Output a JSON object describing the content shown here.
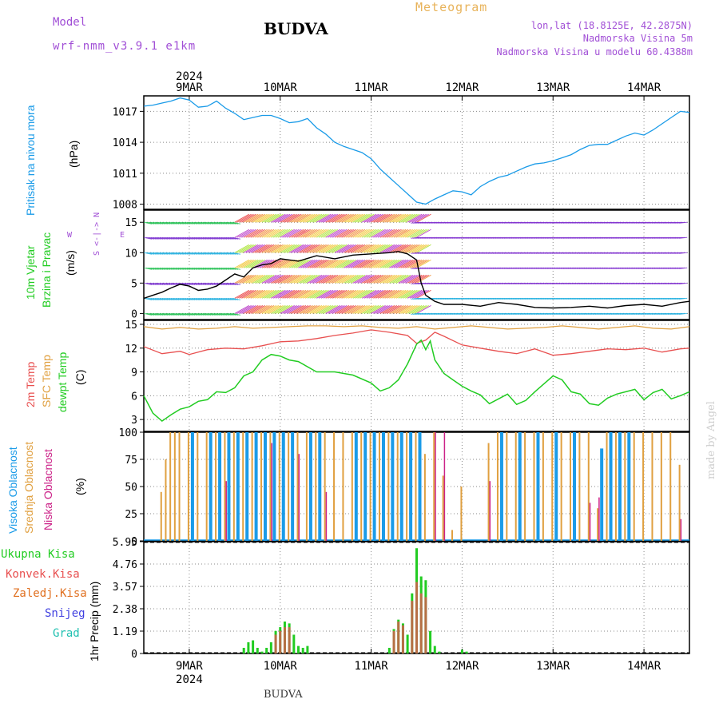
{
  "header": {
    "model_label": "Model",
    "model_version": "wrf-nmm_v3.9.1 e1km",
    "station": "BUDVA",
    "title": "Meteogram",
    "location": "lon,lat (18.8125E, 42.2875N)",
    "elevation": "Nadmorska Visina 5m",
    "model_elevation": "Nadmorska Visina u modelu 60.4388m"
  },
  "footer": {
    "station": "BUDVA",
    "credit": "made by Angel"
  },
  "time_axis": {
    "year": "2024",
    "days": [
      "9MAR",
      "10MAR",
      "11MAR",
      "12MAR",
      "13MAR",
      "14MAR"
    ]
  },
  "colors": {
    "pressure": "#1a9be8",
    "temp2m": "#e85050",
    "sfc": "#e0a040",
    "dewpt": "#22cc22",
    "high_cloud": "#1a9be8",
    "mid_cloud": "#e0a040",
    "low_cloud": "#cc2288",
    "total_precip": "#22cc22",
    "conv_precip": "#e85050",
    "frz_precip": "#e07020",
    "snow": "#4040e0",
    "graupel": "#20c0b0",
    "wind_speed": "#000000"
  },
  "panels": {
    "pressure": {
      "label": "Pritisak na nivou mora",
      "unit": "(hPa)"
    },
    "wind": {
      "label1": "10m Vjetar",
      "label2": "Brzina i Pravac",
      "unit": "(m/s)",
      "compass_ns": "S <-|-> N",
      "compass_w": "W",
      "compass_e": "E"
    },
    "temp": {
      "label1": "2m Temp",
      "label2": "SFC Temp",
      "label3": "dewpt Temp",
      "unit": "(C)"
    },
    "cloud": {
      "label1": "Visoka Oblacnost",
      "label2": "Srednja Oblacnost",
      "label3": "Niska Oblacnost",
      "unit": "(%)"
    },
    "precip": {
      "label1": "Ukupna Kisa",
      "label2": "Konvek.Kisa",
      "label3": "Zaledj.Kisa",
      "label4": "Snijeg",
      "label5": "Grad",
      "unit": "1hr Precip (mm)"
    }
  },
  "chart_data": [
    {
      "type": "line",
      "panel": "pressure",
      "ylabel": "(hPa)",
      "ylim": [
        1007.5,
        1018.5
      ],
      "yticks": [
        1008,
        1011,
        1014,
        1017
      ],
      "x_day_range": [
        8.5,
        14.5
      ],
      "series": [
        {
          "name": "Pritisak na nivou mora",
          "x": [
            8.5,
            8.6,
            8.7,
            8.8,
            8.9,
            9.0,
            9.1,
            9.2,
            9.3,
            9.4,
            9.5,
            9.6,
            9.7,
            9.8,
            9.9,
            10.0,
            10.1,
            10.2,
            10.3,
            10.4,
            10.5,
            10.6,
            10.7,
            10.8,
            10.9,
            11.0,
            11.1,
            11.2,
            11.3,
            11.4,
            11.5,
            11.6,
            11.7,
            11.8,
            11.9,
            12.0,
            12.1,
            12.2,
            12.3,
            12.4,
            12.5,
            12.6,
            12.7,
            12.8,
            12.9,
            13.0,
            13.1,
            13.2,
            13.3,
            13.4,
            13.5,
            13.6,
            13.7,
            13.8,
            13.9,
            14.0,
            14.1,
            14.2,
            14.3,
            14.4,
            14.5
          ],
          "y": [
            1017.5,
            1017.6,
            1017.8,
            1018.0,
            1018.3,
            1018.1,
            1017.4,
            1017.5,
            1018.0,
            1017.3,
            1016.8,
            1016.2,
            1016.4,
            1016.6,
            1016.6,
            1016.3,
            1015.9,
            1016.0,
            1016.3,
            1015.4,
            1014.8,
            1014.0,
            1013.6,
            1013.3,
            1013.0,
            1012.4,
            1011.4,
            1010.6,
            1009.8,
            1009.0,
            1008.2,
            1008.0,
            1008.5,
            1008.9,
            1009.3,
            1009.2,
            1008.9,
            1009.7,
            1010.2,
            1010.6,
            1010.8,
            1011.2,
            1011.6,
            1011.9,
            1012.0,
            1012.2,
            1012.5,
            1012.8,
            1013.3,
            1013.7,
            1013.8,
            1013.8,
            1014.2,
            1014.6,
            1014.9,
            1014.7,
            1015.2,
            1015.8,
            1016.4,
            1017.0,
            1016.9
          ]
        }
      ]
    },
    {
      "type": "line",
      "panel": "wind",
      "ylabel": "(m/s)",
      "ylim": [
        -1,
        17
      ],
      "yticks": [
        0,
        5,
        10,
        15
      ],
      "x_day_range": [
        8.5,
        14.5
      ],
      "series": [
        {
          "name": "10m wind speed",
          "x": [
            8.5,
            8.6,
            8.7,
            8.8,
            8.9,
            9.0,
            9.1,
            9.2,
            9.3,
            9.4,
            9.5,
            9.6,
            9.7,
            9.8,
            9.9,
            10.0,
            10.2,
            10.4,
            10.6,
            10.8,
            11.0,
            11.2,
            11.3,
            11.4,
            11.5,
            11.55,
            11.6,
            11.7,
            11.8,
            12.0,
            12.2,
            12.4,
            12.6,
            12.8,
            13.0,
            13.2,
            13.4,
            13.6,
            13.8,
            14.0,
            14.2,
            14.4,
            14.5
          ],
          "y": [
            2.5,
            3.0,
            3.5,
            4.2,
            4.8,
            4.5,
            3.8,
            4.0,
            4.5,
            5.5,
            6.5,
            6.0,
            7.5,
            8.0,
            8.2,
            9.0,
            8.6,
            9.5,
            9.0,
            9.6,
            9.8,
            10.0,
            10.2,
            9.8,
            8.8,
            5.0,
            3.0,
            2.0,
            1.5,
            1.5,
            1.2,
            1.8,
            1.5,
            1.0,
            0.9,
            1.0,
            1.2,
            0.9,
            1.3,
            1.5,
            1.2,
            1.8,
            2.0
          ]
        }
      ]
    },
    {
      "type": "line",
      "panel": "temperature",
      "ylabel": "(C)",
      "ylim": [
        1.5,
        15.5
      ],
      "yticks": [
        3,
        6,
        9,
        12,
        15
      ],
      "x_day_range": [
        8.5,
        14.5
      ],
      "series": [
        {
          "name": "2m Temp",
          "x": [
            8.5,
            8.7,
            8.9,
            9.0,
            9.2,
            9.4,
            9.6,
            9.8,
            10.0,
            10.2,
            10.4,
            10.6,
            10.8,
            11.0,
            11.2,
            11.4,
            11.5,
            11.6,
            11.7,
            11.8,
            12.0,
            12.2,
            12.4,
            12.6,
            12.8,
            13.0,
            13.2,
            13.4,
            13.6,
            13.8,
            14.0,
            14.2,
            14.4,
            14.5
          ],
          "y": [
            12.2,
            11.3,
            11.6,
            11.2,
            11.8,
            12.0,
            11.9,
            12.3,
            12.8,
            12.9,
            13.2,
            13.6,
            13.9,
            14.3,
            14.0,
            13.6,
            12.6,
            13.0,
            14.0,
            13.5,
            12.4,
            12.0,
            11.6,
            11.3,
            11.9,
            11.1,
            11.3,
            11.6,
            11.9,
            11.8,
            12.0,
            11.5,
            11.9,
            12.0
          ]
        },
        {
          "name": "SFC Temp",
          "x": [
            8.5,
            8.7,
            8.9,
            9.1,
            9.3,
            9.5,
            9.7,
            9.9,
            10.1,
            10.3,
            10.5,
            10.7,
            10.9,
            11.1,
            11.3,
            11.5,
            11.7,
            11.9,
            12.1,
            12.3,
            12.5,
            12.7,
            12.9,
            13.1,
            13.3,
            13.5,
            13.7,
            13.9,
            14.1,
            14.3,
            14.5
          ],
          "y": [
            14.7,
            14.4,
            14.6,
            14.4,
            14.5,
            14.7,
            14.5,
            14.6,
            14.7,
            14.8,
            14.8,
            14.7,
            14.8,
            14.6,
            14.5,
            14.7,
            14.4,
            14.6,
            14.8,
            14.6,
            14.4,
            14.5,
            14.6,
            14.8,
            14.6,
            14.4,
            14.6,
            14.8,
            14.5,
            14.4,
            14.7
          ]
        },
        {
          "name": "dewpt Temp",
          "x": [
            8.5,
            8.6,
            8.7,
            8.8,
            8.9,
            9.0,
            9.1,
            9.2,
            9.3,
            9.4,
            9.5,
            9.6,
            9.7,
            9.8,
            9.9,
            10.0,
            10.1,
            10.2,
            10.4,
            10.6,
            10.8,
            11.0,
            11.1,
            11.2,
            11.3,
            11.4,
            11.5,
            11.55,
            11.6,
            11.65,
            11.7,
            11.8,
            11.9,
            12.0,
            12.1,
            12.2,
            12.3,
            12.4,
            12.5,
            12.6,
            12.7,
            12.8,
            12.9,
            13.0,
            13.1,
            13.2,
            13.3,
            13.4,
            13.5,
            13.6,
            13.7,
            13.8,
            13.9,
            14.0,
            14.1,
            14.2,
            14.3,
            14.4,
            14.5
          ],
          "y": [
            6.0,
            3.8,
            2.8,
            3.6,
            4.3,
            4.6,
            5.3,
            5.5,
            6.5,
            6.4,
            7.0,
            8.5,
            9.0,
            10.5,
            11.2,
            11.0,
            10.5,
            10.3,
            9.0,
            9.0,
            8.6,
            7.6,
            6.6,
            7.0,
            8.0,
            10.0,
            12.5,
            13.0,
            11.8,
            12.9,
            10.5,
            8.8,
            8.0,
            7.2,
            6.6,
            6.1,
            5.0,
            5.6,
            6.2,
            4.9,
            5.4,
            6.5,
            7.5,
            8.5,
            8.0,
            6.5,
            6.2,
            5.0,
            4.8,
            5.7,
            6.2,
            6.5,
            6.8,
            5.5,
            6.4,
            6.8,
            5.6,
            6.0,
            6.5
          ]
        }
      ]
    },
    {
      "type": "bar",
      "panel": "cloud",
      "ylabel": "(%)",
      "ylim": [
        0,
        100
      ],
      "yticks": [
        0,
        25,
        50,
        75,
        100
      ],
      "x_day_range": [
        8.5,
        14.5
      ],
      "series": [
        {
          "name": "Visoka Oblacnost",
          "x": [
            9.0,
            9.2,
            9.3,
            9.4,
            9.5,
            9.6,
            9.7,
            9.8,
            9.9,
            10.0,
            10.1,
            10.3,
            10.4,
            10.8,
            10.9,
            11.0,
            11.1,
            11.2,
            11.3,
            11.4,
            11.5,
            12.4,
            12.6,
            12.8,
            13.0,
            13.2,
            13.5,
            13.6,
            13.7,
            13.8
          ],
          "y": [
            100,
            100,
            100,
            100,
            100,
            100,
            100,
            100,
            100,
            100,
            100,
            100,
            100,
            100,
            100,
            100,
            100,
            100,
            100,
            100,
            100,
            100,
            100,
            100,
            100,
            100,
            85,
            100,
            100,
            100
          ]
        },
        {
          "name": "Srednja Oblacnost",
          "x": [
            8.7,
            8.75,
            8.8,
            8.85,
            8.9,
            9.0,
            9.1,
            9.2,
            9.3,
            9.4,
            9.5,
            9.6,
            9.7,
            9.8,
            9.9,
            10.0,
            10.1,
            10.2,
            10.3,
            10.4,
            10.5,
            10.6,
            10.7,
            10.8,
            10.9,
            11.0,
            11.1,
            11.2,
            11.3,
            11.4,
            11.5,
            11.6,
            11.7,
            11.8,
            11.9,
            12.0,
            12.3,
            12.4,
            12.5,
            12.6,
            12.7,
            12.8,
            12.9,
            13.0,
            13.1,
            13.2,
            13.3,
            13.4,
            13.5,
            13.6,
            13.7,
            13.8,
            13.9,
            14.0,
            14.1,
            14.2,
            14.3,
            14.4
          ],
          "y": [
            45,
            75,
            100,
            100,
            100,
            100,
            100,
            100,
            100,
            100,
            100,
            100,
            100,
            100,
            100,
            100,
            100,
            100,
            100,
            100,
            100,
            100,
            100,
            100,
            100,
            100,
            100,
            100,
            100,
            100,
            100,
            80,
            100,
            60,
            10,
            50,
            90,
            100,
            100,
            100,
            100,
            100,
            100,
            100,
            100,
            100,
            100,
            100,
            30,
            100,
            100,
            100,
            100,
            100,
            100,
            100,
            100,
            70
          ]
        },
        {
          "name": "Niska Oblacnost",
          "x": [
            9.4,
            9.9,
            10.2,
            10.5,
            11.7,
            11.8,
            12.3,
            13.4,
            13.5,
            14.4
          ],
          "y": [
            55,
            90,
            80,
            45,
            100,
            100,
            55,
            35,
            40,
            20
          ]
        }
      ]
    },
    {
      "type": "bar",
      "panel": "precip",
      "ylabel": "1hr Precip (mm)",
      "ylim": [
        0,
        5.95
      ],
      "yticks": [
        0,
        1.19,
        2.38,
        3.57,
        4.76,
        5.95
      ],
      "x_day_range": [
        8.5,
        14.5
      ],
      "series": [
        {
          "name": "Ukupna Kisa",
          "x": [
            9.6,
            9.65,
            9.7,
            9.75,
            9.8,
            9.85,
            9.9,
            9.95,
            10.0,
            10.05,
            10.1,
            10.15,
            10.2,
            10.25,
            10.3,
            11.2,
            11.25,
            11.3,
            11.35,
            11.4,
            11.45,
            11.5,
            11.55,
            11.6,
            11.65,
            11.7,
            11.75,
            12.0,
            12.05
          ],
          "y": [
            0.3,
            0.6,
            0.7,
            0.3,
            0.1,
            0.3,
            0.6,
            1.2,
            1.4,
            1.7,
            1.6,
            1.0,
            0.4,
            0.3,
            0.4,
            0.3,
            1.3,
            1.8,
            1.6,
            1.0,
            3.2,
            5.6,
            4.1,
            3.9,
            1.2,
            0.4,
            0.1,
            0.2,
            0.1
          ]
        },
        {
          "name": "Konvek.Kisa",
          "x": [
            9.95,
            10.0,
            10.05,
            10.1,
            11.25,
            11.3,
            11.35,
            11.45,
            11.5,
            11.55,
            11.6
          ],
          "y": [
            1.0,
            1.2,
            1.4,
            1.4,
            1.2,
            1.7,
            1.5,
            2.8,
            3.8,
            3.2,
            3.0
          ]
        }
      ]
    }
  ]
}
